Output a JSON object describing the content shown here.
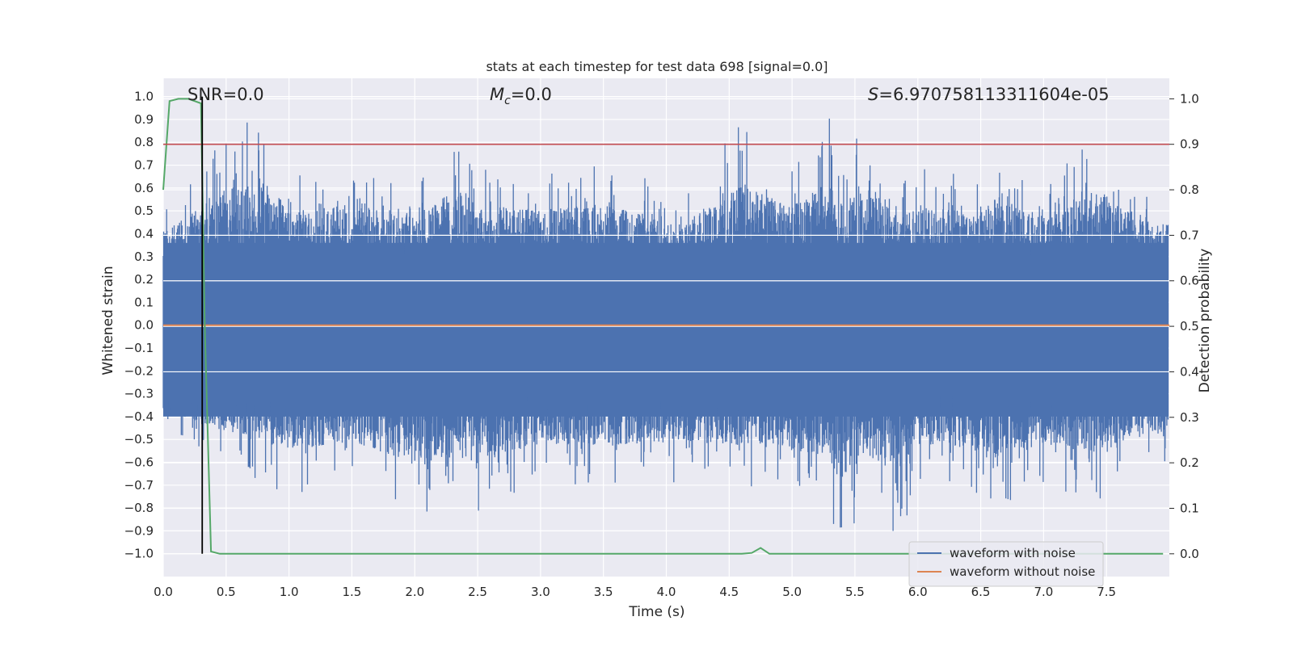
{
  "chart_data": {
    "type": "line",
    "title": "stats at each timestep for test data 698 [signal=0.0]",
    "xlabel": "Time (s)",
    "ylabel": "Whitened strain",
    "y2label": "Detection probability",
    "xlim": [
      0.0,
      8.0
    ],
    "ylim": [
      -1.1,
      1.08
    ],
    "y2lim": [
      -0.05,
      1.045
    ],
    "x_ticks": [
      "0.0",
      "0.5",
      "1.0",
      "1.5",
      "2.0",
      "2.5",
      "3.0",
      "3.5",
      "4.0",
      "4.5",
      "5.0",
      "5.5",
      "6.0",
      "6.5",
      "7.0",
      "7.5"
    ],
    "y_ticks": [
      "1.0",
      "0.9",
      "0.8",
      "0.7",
      "0.6",
      "0.5",
      "0.4",
      "0.3",
      "0.2",
      "0.1",
      "0.0",
      "−0.1",
      "−0.2",
      "−0.3",
      "−0.4",
      "−0.5",
      "−0.6",
      "−0.7",
      "−0.8",
      "−0.9",
      "−1.0"
    ],
    "y2_ticks": [
      "1.0",
      "0.9",
      "0.8",
      "0.7",
      "0.6",
      "0.5",
      "0.4",
      "0.3",
      "0.2",
      "0.1",
      "0.0"
    ],
    "grid": true,
    "legend_position": "bottom-right",
    "legend": [
      "waveform with noise",
      "waveform without noise"
    ],
    "annotations": {
      "snr": "SNR=0.0",
      "mc_symbol": "M",
      "mc_sub": "c",
      "mc_value": "=0.0",
      "s_symbol": "S",
      "s_value": "=6.970758113311604e-05"
    },
    "noise_envelope": {
      "description_values": "approximate peak envelope of waveform with noise",
      "x": [
        0.0,
        0.5,
        0.83,
        1.0,
        1.5,
        2.0,
        2.37,
        2.5,
        2.6,
        3.0,
        3.5,
        4.0,
        4.1,
        4.45,
        4.6,
        5.0,
        5.3,
        5.35,
        5.6,
        5.85,
        6.0,
        6.5,
        6.65,
        7.0,
        7.5,
        7.55,
        8.0
      ],
      "upper": [
        0.5,
        0.83,
        0.95,
        0.65,
        0.72,
        0.62,
        0.88,
        0.68,
        0.7,
        0.68,
        0.72,
        0.62,
        0.52,
        0.82,
        0.9,
        0.7,
        0.91,
        0.72,
        0.87,
        0.6,
        0.7,
        0.65,
        0.82,
        0.62,
        0.88,
        0.72,
        0.55
      ],
      "lower": [
        -0.45,
        -0.6,
        -0.7,
        -0.75,
        -0.68,
        -0.85,
        -0.8,
        -0.85,
        -0.8,
        -0.7,
        -0.72,
        -0.68,
        -0.7,
        -0.7,
        -0.7,
        -0.75,
        -0.8,
        -1.0,
        -0.8,
        -0.93,
        -0.7,
        -0.75,
        -0.8,
        -0.7,
        -0.8,
        -0.7,
        -0.6
      ]
    },
    "series": [
      {
        "name": "waveform without noise",
        "color": "#dd8452",
        "x": [
          0.0,
          8.0
        ],
        "y": [
          0.0,
          0.0
        ]
      },
      {
        "name": "detection probability",
        "axis": "right",
        "color": "#55a868",
        "x": [
          0.0,
          0.05,
          0.12,
          0.2,
          0.3,
          0.33,
          0.38,
          0.45,
          1.0,
          2.0,
          3.0,
          4.0,
          4.6,
          4.68,
          4.75,
          4.82,
          5.0,
          6.0,
          7.0,
          7.95
        ],
        "y": [
          0.8,
          0.995,
          1.0,
          1.0,
          0.99,
          0.5,
          0.005,
          0.0,
          0.0,
          0.0,
          0.0,
          0.0,
          0.0,
          0.002,
          0.013,
          0.0,
          0.0,
          0.0,
          0.0,
          0.0
        ]
      }
    ],
    "threshold_line": {
      "axis": "right",
      "value": 0.9,
      "color": "#c44e52"
    },
    "vertical_marker": {
      "x": 0.31,
      "y_from": -1.0,
      "y_to": 1.0,
      "color": "#000000"
    },
    "colors": {
      "noise": "#4c72b0",
      "clean": "#dd8452",
      "prob": "#55a868",
      "threshold": "#c44e52",
      "plot_bg": "#eaeaf2",
      "grid": "#ffffff"
    }
  }
}
